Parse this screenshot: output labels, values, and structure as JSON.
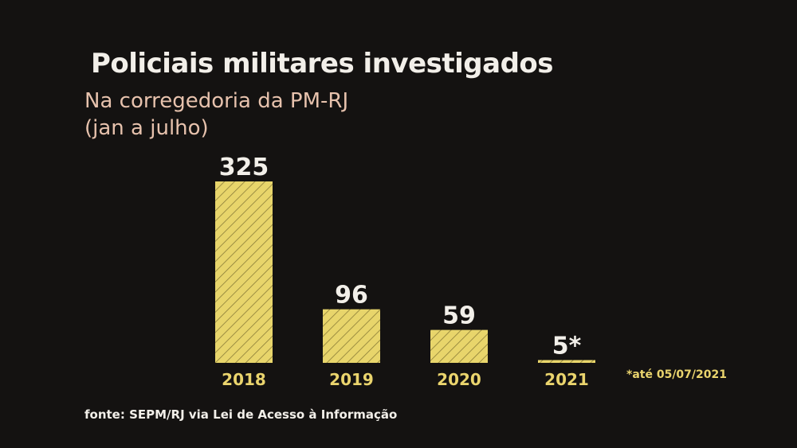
{
  "chart_data": {
    "type": "bar",
    "title": "Policiais militares investigados",
    "subtitle_lines": [
      "Na corregedoria da PM-RJ",
      "(jan a julho)"
    ],
    "categories": [
      "2018",
      "2019",
      "2020",
      "2021"
    ],
    "values": [
      325,
      96,
      59,
      5
    ],
    "data_labels": [
      "325",
      "96",
      "59",
      "5*"
    ],
    "ylim": [
      0,
      325
    ],
    "grid": false,
    "bar_color": "#e8d56b",
    "hatch_color": "#8a7d38",
    "footnote": "*até 05/07/2021",
    "source": "fonte: SEPM/RJ via Lei de Acesso à Informação"
  },
  "colors": {
    "background": "#141211",
    "title": "#f2efe9",
    "subtitle": "#e7c2ad",
    "tick_label": "#ead46d",
    "value_label": "#f2efe9"
  }
}
